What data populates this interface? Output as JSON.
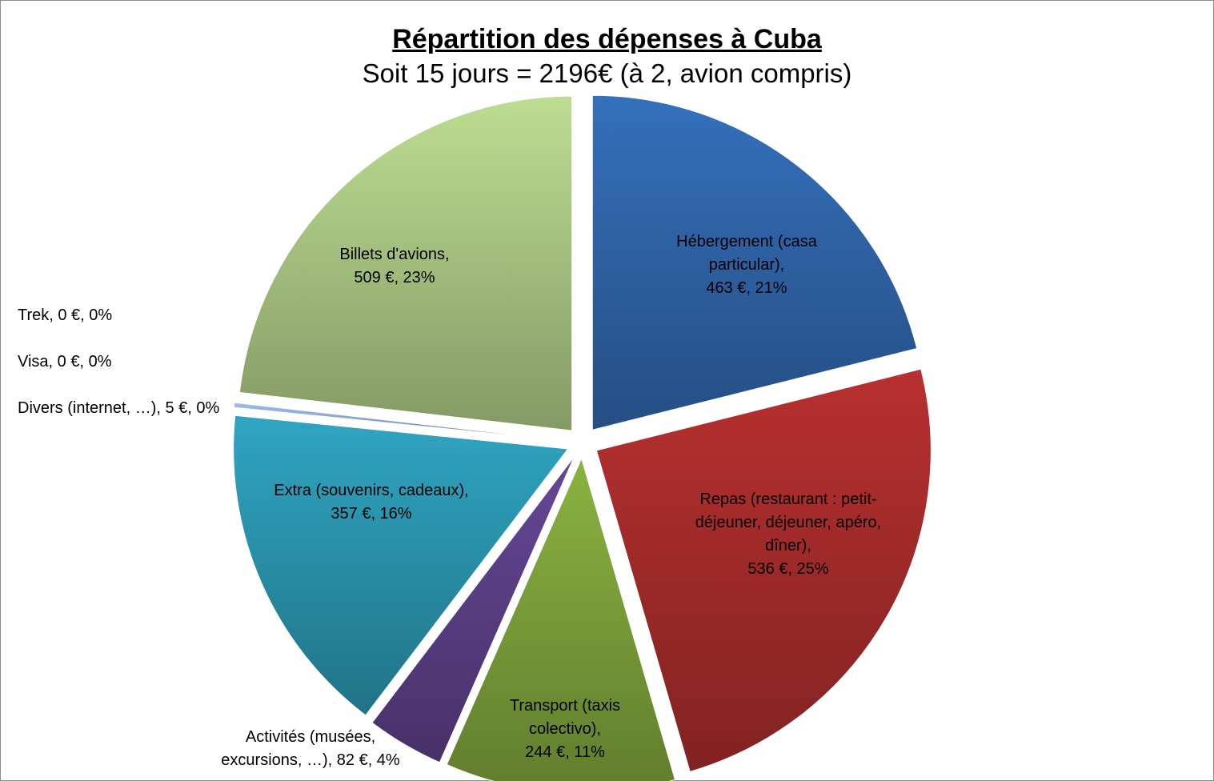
{
  "chart_data": {
    "type": "pie",
    "title": "Répartition des dépenses à Cuba",
    "subtitle": "Soit 15 jours =  2196€ (à 2, avion compris)",
    "currency": "€",
    "slices": [
      {
        "name": "Hébergement (casa particular)",
        "value": 463,
        "percent": 21,
        "color": "#2f64a8",
        "label_lines": [
          "Hébergement (casa",
          "particular),",
          "463 €, 21%"
        ]
      },
      {
        "name": "Repas (restaurant : petit-déjeuner, déjeuner, apéro, dîner)",
        "value": 536,
        "percent": 25,
        "color": "#a52b2b",
        "label_lines": [
          "Repas (restaurant : petit-",
          "déjeuner, déjeuner, apéro,",
          "dîner),",
          "536 €, 25%"
        ]
      },
      {
        "name": "Transport (taxis colectivo)",
        "value": 244,
        "percent": 11,
        "color": "#7ba03a",
        "label_lines": [
          "Transport (taxis",
          "colectivo),",
          "244 €, 11%"
        ]
      },
      {
        "name": "Activités (musées, excursions, …)",
        "value": 82,
        "percent": 4,
        "color": "#5b3f86",
        "label_lines": [
          "Activités (musées,",
          "excursions, …),  82 €, 4%"
        ]
      },
      {
        "name": "Extra (souvenirs, cadeaux)",
        "value": 357,
        "percent": 16,
        "color": "#2a93ad",
        "label_lines": [
          "Extra (souvenirs, cadeaux),",
          "357 €, 16%"
        ]
      },
      {
        "name": "Divers (internet, …)",
        "value": 5,
        "percent": 0,
        "color": "#8ea8d8",
        "label_lines": [
          "Divers (internet, …), 5 €, 0%"
        ]
      },
      {
        "name": "Visa",
        "value": 0,
        "percent": 0,
        "color": "#c0504d",
        "label_lines": [
          "Visa, 0 €, 0%"
        ]
      },
      {
        "name": "Trek",
        "value": 0,
        "percent": 0,
        "color": "#9bbb59",
        "label_lines": [
          "Trek, 0 €, 0%"
        ]
      },
      {
        "name": "Billets d'avions",
        "value": 509,
        "percent": 23,
        "color": "#a9c582",
        "label_lines": [
          "Billets d'avions,",
          "509 €, 23%"
        ]
      }
    ]
  }
}
